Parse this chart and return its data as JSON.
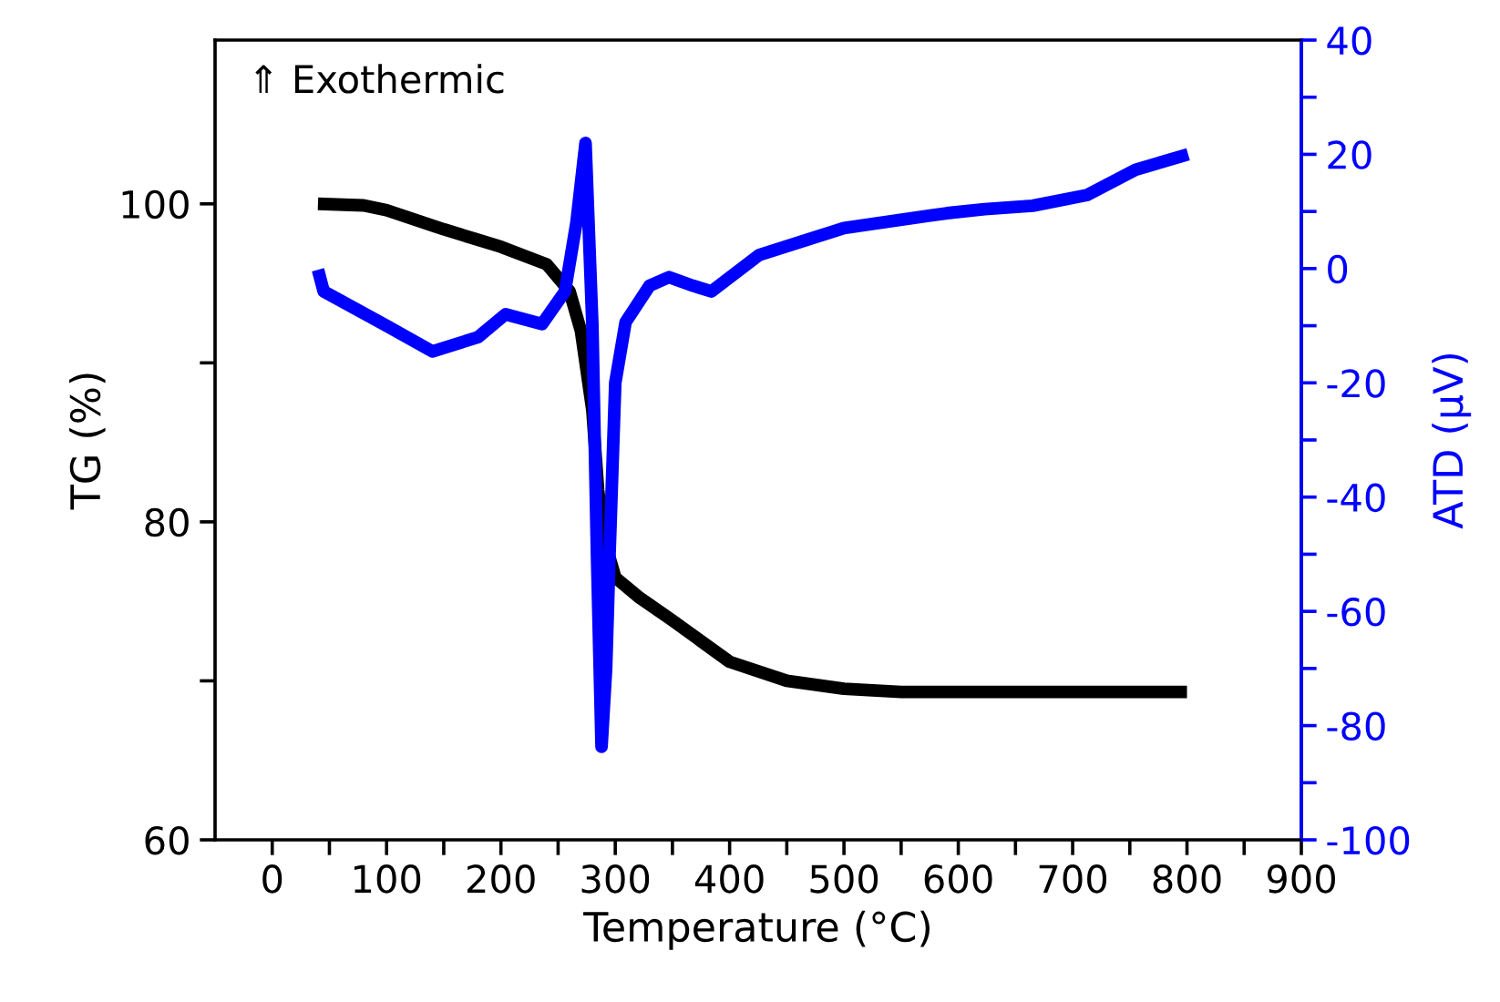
{
  "chart_data": {
    "type": "line",
    "xlabel": "Temperature (°C)",
    "ylabel": "TG (%)",
    "y2label": "ATD (μV)",
    "annotations": [
      "⇑ Exothermic"
    ],
    "xlim": [
      -50,
      900
    ],
    "ylim": [
      60,
      110.3
    ],
    "y2lim": [
      -100,
      40
    ],
    "xticks": [
      0,
      {
        "value": 50,
        "label": null
      },
      100,
      {
        "value": 150,
        "label": null
      },
      200,
      {
        "value": 250,
        "label": null
      },
      300,
      {
        "value": 350,
        "label": null
      },
      400,
      {
        "value": 450,
        "label": null
      },
      500,
      {
        "value": 550,
        "label": null
      },
      600,
      {
        "value": 650,
        "label": null
      },
      700,
      {
        "value": 750,
        "label": null
      },
      800,
      {
        "value": 850,
        "label": null
      },
      900
    ],
    "yticks": [
      60,
      {
        "value": 70,
        "label": null
      },
      80,
      {
        "value": 90,
        "label": null
      },
      100
    ],
    "y2ticks": [
      -100,
      {
        "value": -90,
        "label": null
      },
      -80,
      {
        "value": -70,
        "label": null
      },
      -60,
      {
        "value": -50,
        "label": null
      },
      -40,
      {
        "value": -30,
        "label": null
      },
      -20,
      {
        "value": -10,
        "label": null
      },
      0,
      {
        "value": 10,
        "label": null
      },
      20,
      {
        "value": 30,
        "label": null
      },
      40
    ],
    "grid": false,
    "line_style": "solid",
    "series": [
      {
        "color": "#000000",
        "axis": "y",
        "x": [
          40,
          80,
          100,
          150,
          200,
          240,
          260,
          270,
          280,
          285,
          290,
          300,
          320,
          350,
          400,
          450,
          500,
          550,
          600,
          700,
          800
        ],
        "values": [
          100,
          99.9,
          99.6,
          98.4,
          97.3,
          96.2,
          94.5,
          92,
          87,
          82,
          79,
          76.5,
          75.3,
          73.8,
          71.2,
          70,
          69.5,
          69.3,
          69.3,
          69.3,
          69.3
        ]
      },
      {
        "color": "#0000ff",
        "axis": "y2",
        "x": [
          40,
          45,
          100,
          140,
          180,
          204,
          236,
          256,
          266,
          274,
          280,
          284,
          288,
          292,
          295,
          300,
          309,
          330,
          347,
          368,
          384,
          426,
          500,
          590,
          623,
          665,
          713,
          755,
          801
        ],
        "values": [
          -0.2,
          -4,
          -10,
          -14.5,
          -12,
          -8,
          -9.7,
          -4,
          8,
          22,
          -10,
          -50,
          -83.7,
          -70,
          -50,
          -20,
          -9.4,
          -3,
          -1.5,
          -3,
          -4,
          2.4,
          7.1,
          9.7,
          10.4,
          11,
          12.9,
          17.3,
          20
        ]
      }
    ]
  }
}
